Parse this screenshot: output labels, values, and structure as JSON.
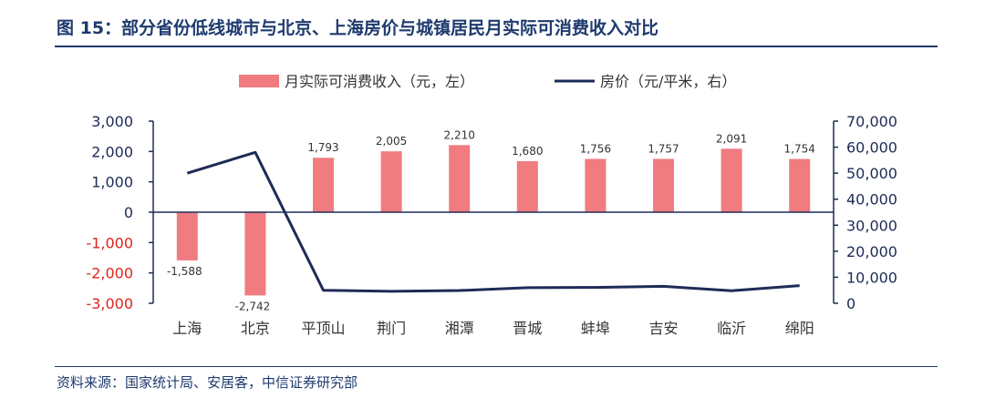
{
  "title": "图 15：部分省份低线城市与北京、上海房价与城镇居民月实际可消费收入对比",
  "source": "资料来源：国家统计局、安居客，中信证券研究部",
  "colors": {
    "bar": "#f07c80",
    "line": "#1f2b57",
    "title": "#1e3a6e",
    "negative_tick": "#e0241b",
    "positive_tick": "#1f2b57"
  },
  "chart_data": {
    "type": "bar",
    "categories": [
      "上海",
      "北京",
      "平顶山",
      "荆门",
      "湘潭",
      "晋城",
      "蚌埠",
      "吉安",
      "临沂",
      "绵阳"
    ],
    "series": [
      {
        "name": "月实际可消费收入（元，左）",
        "type": "bar",
        "axis": "left",
        "values": [
          -1588,
          -2742,
          1793,
          2005,
          2210,
          1680,
          1756,
          1757,
          2091,
          1754
        ],
        "labels": [
          "-1,588",
          "-2,742",
          "1,793",
          "2,005",
          "2,210",
          "1,680",
          "1,756",
          "1,757",
          "2,091",
          "1,754"
        ]
      },
      {
        "name": "房价（元/平米，右）",
        "type": "line",
        "axis": "right",
        "values": [
          50000,
          58000,
          5000,
          4600,
          4900,
          6000,
          6100,
          6500,
          4800,
          6800
        ]
      }
    ],
    "y_left": {
      "range": [
        -3000,
        3000
      ],
      "ticks": [
        3000,
        2000,
        1000,
        0,
        -1000,
        -2000,
        -3000
      ],
      "tick_labels": [
        "3,000",
        "2,000",
        "1,000",
        "0",
        "-1,000",
        "-2,000",
        "-3,000"
      ]
    },
    "y_right": {
      "range": [
        0,
        70000
      ],
      "ticks": [
        70000,
        60000,
        50000,
        40000,
        30000,
        20000,
        10000,
        0
      ],
      "tick_labels": [
        "70,000",
        "60,000",
        "50,000",
        "40,000",
        "30,000",
        "20,000",
        "10,000",
        "0"
      ]
    },
    "legend_position": "top-center",
    "grid": false
  }
}
